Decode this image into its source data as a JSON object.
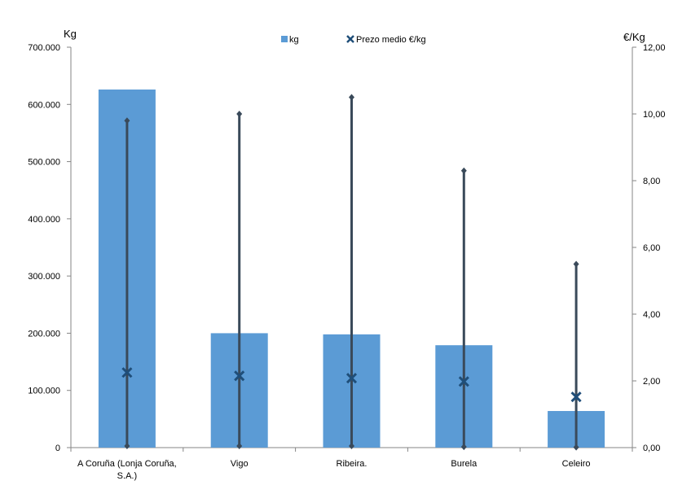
{
  "chart_data": {
    "type": "bar",
    "categories": [
      "A Coruña (Lonja Coruña, S.A.)",
      "Vigo",
      "Ribeira.",
      "Burela",
      "Celeiro"
    ],
    "category_label_lines": [
      [
        "A Coruña (Lonja Coruña,",
        "S.A.)"
      ],
      [
        "Vigo"
      ],
      [
        "Ribeira."
      ],
      [
        "Burela"
      ],
      [
        "Celeiro"
      ]
    ],
    "left_axis": {
      "label": "Kg",
      "min": 0,
      "max": 700000,
      "step": 100000,
      "tick_labels": [
        "0",
        "100.000",
        "200.000",
        "300.000",
        "400.000",
        "500.000",
        "600.000",
        "700.000"
      ]
    },
    "right_axis": {
      "label": "€/Kg",
      "min": 0,
      "max": 12,
      "step": 2,
      "tick_labels": [
        "0,00",
        "2,00",
        "4,00",
        "6,00",
        "8,00",
        "10,00",
        "12,00"
      ]
    },
    "series": [
      {
        "name": "kg",
        "kind": "bar",
        "axis": "left",
        "color": "#5b9bd5",
        "values": [
          626000,
          200000,
          198000,
          179000,
          64000
        ]
      },
      {
        "name": "Prezo medio €/kg",
        "kind": "marker",
        "axis": "right",
        "color": "#1f4e79",
        "values": [
          2.25,
          2.15,
          2.08,
          1.98,
          1.52
        ],
        "range_low": [
          0.05,
          0.05,
          0.05,
          0.02,
          0.01
        ],
        "range_high": [
          9.8,
          10.0,
          10.5,
          8.3,
          5.5
        ]
      }
    ],
    "legend_position": "top-center",
    "grid": false
  }
}
